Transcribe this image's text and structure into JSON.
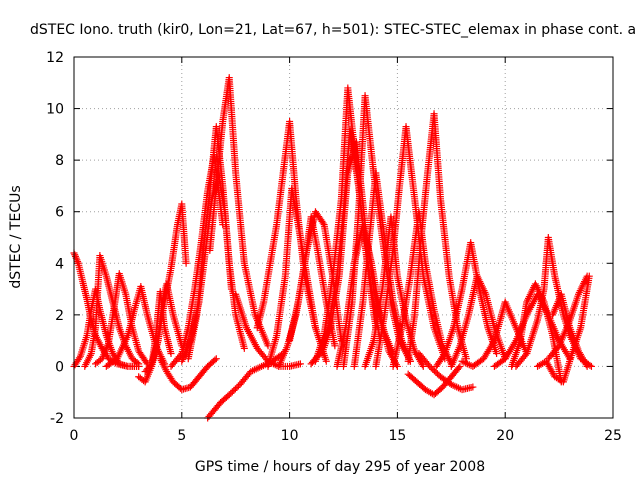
{
  "chart_data": {
    "type": "scatter",
    "title": "dSTEC Iono. truth (kir0, Lon=21, Lat=67, h=501): STEC-STEC_elemax in phase cont. a",
    "xlabel": "GPS time / hours of day 295 of year 2008",
    "ylabel": "dSTEC  / TECUs",
    "xlim": [
      0,
      25
    ],
    "ylim": [
      -2,
      12
    ],
    "xticks": [
      0,
      5,
      10,
      15,
      20,
      25
    ],
    "yticks": [
      -2,
      0,
      2,
      4,
      6,
      8,
      10,
      12
    ],
    "grid": true,
    "marker": "+",
    "color": "#ff0000",
    "series": [
      {
        "x": [
          0.0,
          0.2,
          0.4,
          0.6,
          0.8,
          1.0,
          1.3,
          1.6,
          2.0,
          2.5,
          3.0
        ],
        "y": [
          4.4,
          4.0,
          3.3,
          2.6,
          1.8,
          1.2,
          0.7,
          0.3,
          0.1,
          0.0,
          0.0
        ]
      },
      {
        "x": [
          0.0,
          0.3,
          0.6,
          0.8,
          1.0,
          1.2,
          1.5,
          1.8,
          2.1,
          2.5,
          3.0
        ],
        "y": [
          0.0,
          0.4,
          1.2,
          2.2,
          3.0,
          2.2,
          1.2,
          0.5,
          0.1,
          0.0,
          0.0
        ]
      },
      {
        "x": [
          0.5,
          0.8,
          1.0,
          1.2,
          1.5,
          1.8,
          2.1,
          2.4,
          2.7,
          3.0
        ],
        "y": [
          0.0,
          0.5,
          1.5,
          4.3,
          3.5,
          2.5,
          1.5,
          0.8,
          0.3,
          0.1
        ]
      },
      {
        "x": [
          1.0,
          1.3,
          1.6,
          1.9,
          2.1,
          2.4,
          2.7,
          3.0,
          3.4
        ],
        "y": [
          0.1,
          0.3,
          0.9,
          2.5,
          3.6,
          2.8,
          1.5,
          0.6,
          0.1
        ]
      },
      {
        "x": [
          1.5,
          2.0,
          2.5,
          2.8,
          3.1,
          3.4,
          3.8,
          4.2
        ],
        "y": [
          0.0,
          0.3,
          1.2,
          2.2,
          3.1,
          2.0,
          0.8,
          0.1
        ]
      },
      {
        "x": [
          3.0,
          3.3,
          3.6,
          3.8,
          4.0,
          4.2,
          4.5
        ],
        "y": [
          -0.4,
          -0.6,
          0.0,
          1.2,
          2.9,
          1.5,
          0.5
        ]
      },
      {
        "x": [
          3.3,
          3.6,
          3.9,
          4.1,
          4.3,
          4.6,
          5.0
        ],
        "y": [
          -0.2,
          0.1,
          1.0,
          2.5,
          3.2,
          2.0,
          0.8
        ]
      },
      {
        "x": [
          3.6,
          3.9,
          4.2,
          4.5,
          4.8,
          5.0,
          5.2
        ],
        "y": [
          0.0,
          1.0,
          2.5,
          3.8,
          5.5,
          6.3,
          4.0
        ]
      },
      {
        "x": [
          4.0,
          4.3,
          4.6,
          5.0,
          5.4,
          5.8,
          6.2,
          6.6
        ],
        "y": [
          0.3,
          -0.2,
          -0.6,
          -0.9,
          -0.8,
          -0.4,
          0.0,
          0.3
        ]
      },
      {
        "x": [
          4.5,
          5.0,
          5.3,
          5.6,
          5.9,
          6.2,
          6.5,
          6.9
        ],
        "y": [
          0.0,
          0.5,
          1.5,
          3.0,
          4.8,
          6.8,
          8.2,
          5.5
        ]
      },
      {
        "x": [
          5.0,
          5.4,
          5.8,
          6.1,
          6.4,
          6.7,
          7.0,
          7.3
        ],
        "y": [
          0.2,
          1.0,
          2.5,
          4.5,
          6.5,
          7.5,
          6.0,
          3.0
        ]
      },
      {
        "x": [
          5.3,
          5.7,
          6.0,
          6.3,
          6.6,
          6.9,
          7.2,
          7.5,
          7.9
        ],
        "y": [
          0.3,
          2.0,
          4.5,
          6.8,
          9.3,
          7.0,
          4.0,
          2.0,
          0.7
        ]
      },
      {
        "x": [
          6.3,
          6.6,
          6.9,
          7.2,
          7.5,
          7.9,
          8.4,
          9.0
        ],
        "y": [
          4.5,
          7.0,
          9.5,
          11.2,
          7.5,
          4.0,
          2.0,
          0.8
        ]
      },
      {
        "x": [
          6.2,
          6.5,
          6.8,
          7.2,
          7.7,
          8.2,
          8.7,
          9.2,
          9.7
        ],
        "y": [
          -2.0,
          -1.7,
          -1.4,
          -1.1,
          -0.7,
          -0.2,
          0.0,
          0.2,
          0.5
        ]
      },
      {
        "x": [
          7.5,
          8.0,
          8.5,
          9.0,
          9.5,
          10.0,
          10.5
        ],
        "y": [
          2.8,
          1.5,
          0.7,
          0.2,
          0.0,
          0.0,
          0.1
        ]
      },
      {
        "x": [
          8.5,
          8.8,
          9.1,
          9.4,
          9.7,
          10.0,
          10.3,
          10.7,
          11.2
        ],
        "y": [
          1.5,
          2.5,
          4.0,
          5.5,
          7.5,
          9.5,
          6.5,
          3.5,
          1.5
        ]
      },
      {
        "x": [
          9.0,
          9.4,
          9.8,
          10.1,
          10.4,
          10.8,
          11.2,
          11.7
        ],
        "y": [
          0.0,
          1.2,
          3.5,
          6.9,
          5.5,
          3.5,
          1.5,
          0.2
        ]
      },
      {
        "x": [
          9.5,
          9.9,
          10.3,
          10.7,
          11.0,
          11.3,
          11.7,
          12.1
        ],
        "y": [
          0.0,
          0.8,
          2.0,
          4.0,
          5.8,
          4.5,
          2.5,
          0.8
        ]
      },
      {
        "x": [
          10.0,
          10.4,
          10.8,
          11.2,
          11.6,
          12.0,
          12.4
        ],
        "y": [
          1.0,
          2.5,
          4.5,
          6.0,
          5.5,
          3.5,
          1.0
        ]
      },
      {
        "x": [
          11.0,
          11.4,
          11.8,
          12.2,
          12.5,
          12.8,
          13.2,
          13.6,
          14.0
        ],
        "y": [
          0.1,
          0.5,
          1.5,
          3.5,
          6.0,
          9.2,
          7.0,
          4.0,
          1.5
        ]
      },
      {
        "x": [
          11.2,
          11.6,
          12.0,
          12.4,
          12.7,
          13.0,
          13.4,
          13.8,
          14.2
        ],
        "y": [
          0.2,
          1.2,
          3.5,
          6.5,
          10.8,
          8.5,
          5.5,
          3.0,
          1.0
        ]
      },
      {
        "x": [
          11.5,
          11.9,
          12.3,
          12.7,
          13.1,
          13.5,
          13.9,
          14.3,
          14.8
        ],
        "y": [
          0.5,
          1.5,
          3.5,
          7.5,
          8.7,
          5.5,
          3.0,
          1.5,
          0.5
        ]
      },
      {
        "x": [
          12.2,
          12.6,
          13.0,
          13.4,
          13.8,
          14.2,
          14.6,
          15.0
        ],
        "y": [
          0.0,
          1.5,
          4.0,
          5.5,
          4.0,
          2.0,
          0.6,
          0.0
        ]
      },
      {
        "x": [
          12.5,
          12.9,
          13.2,
          13.5,
          13.9,
          14.3,
          14.7,
          15.1,
          15.6
        ],
        "y": [
          0.0,
          2.5,
          6.0,
          10.5,
          7.5,
          5.0,
          2.5,
          1.0,
          0.2
        ]
      },
      {
        "x": [
          13.0,
          13.4,
          13.7,
          14.0,
          14.4,
          14.8,
          15.2,
          15.6
        ],
        "y": [
          0.0,
          2.5,
          5.0,
          7.5,
          5.0,
          2.5,
          1.0,
          0.2
        ]
      },
      {
        "x": [
          13.5,
          13.9,
          14.3,
          14.7,
          15.0,
          15.4,
          15.8,
          16.2
        ],
        "y": [
          0.0,
          1.0,
          3.0,
          5.8,
          3.5,
          1.8,
          0.6,
          0.0
        ]
      },
      {
        "x": [
          14.0,
          14.4,
          14.8,
          15.1,
          15.4,
          15.8,
          16.2,
          16.7,
          17.2
        ],
        "y": [
          0.0,
          2.0,
          4.5,
          7.0,
          9.3,
          6.5,
          3.5,
          1.5,
          0.3
        ]
      },
      {
        "x": [
          14.8,
          15.2,
          15.6,
          16.0,
          16.3,
          16.7,
          17.1,
          17.5
        ],
        "y": [
          0.0,
          1.5,
          3.5,
          6.0,
          4.0,
          2.2,
          0.8,
          0.1
        ]
      },
      {
        "x": [
          15.5,
          15.8,
          16.1,
          16.4,
          16.7,
          17.0,
          17.4,
          17.8,
          18.2
        ],
        "y": [
          0.2,
          2.0,
          5.0,
          7.5,
          9.8,
          6.5,
          3.5,
          1.5,
          0.3
        ]
      },
      {
        "x": [
          15.5,
          15.9,
          16.3,
          16.7,
          17.1,
          17.5,
          17.9
        ],
        "y": [
          -0.3,
          -0.6,
          -0.9,
          -1.1,
          -0.8,
          -0.4,
          0.0
        ]
      },
      {
        "x": [
          16.0,
          16.5,
          17.0,
          17.5,
          18.0,
          18.5
        ],
        "y": [
          0.5,
          0.0,
          -0.4,
          -0.7,
          -0.9,
          -0.8
        ]
      },
      {
        "x": [
          16.8,
          17.2,
          17.6,
          18.0,
          18.4,
          18.8,
          19.2,
          19.6
        ],
        "y": [
          0.0,
          0.5,
          1.5,
          3.0,
          4.8,
          3.0,
          1.5,
          0.5
        ]
      },
      {
        "x": [
          17.5,
          17.9,
          18.3,
          18.7,
          19.1,
          19.5,
          20.0
        ],
        "y": [
          0.0,
          0.8,
          2.0,
          3.5,
          2.8,
          1.5,
          0.3
        ]
      },
      {
        "x": [
          18.0,
          18.5,
          19.0,
          19.5,
          20.0,
          20.5,
          21.0
        ],
        "y": [
          0.2,
          0.0,
          0.3,
          1.0,
          2.5,
          1.5,
          0.5
        ]
      },
      {
        "x": [
          19.5,
          20.0,
          20.5,
          21.0,
          21.5,
          22.0,
          22.5,
          23.0
        ],
        "y": [
          0.0,
          0.3,
          1.0,
          2.0,
          2.8,
          2.0,
          1.0,
          0.3
        ]
      },
      {
        "x": [
          20.5,
          21.0,
          21.5,
          21.8,
          22.0,
          22.3,
          22.7,
          23.0,
          23.5,
          24.0
        ],
        "y": [
          0.0,
          0.5,
          1.8,
          3.0,
          5.0,
          3.5,
          2.0,
          1.2,
          0.3,
          0.0
        ]
      },
      {
        "x": [
          20.3,
          20.7,
          21.0,
          21.4,
          21.8,
          22.2,
          22.6
        ],
        "y": [
          0.0,
          1.0,
          2.5,
          3.2,
          2.5,
          1.2,
          -0.6
        ]
      },
      {
        "x": [
          21.5,
          21.9,
          22.3,
          22.7,
          23.1,
          23.5,
          23.9
        ],
        "y": [
          0.0,
          0.2,
          -0.4,
          -0.6,
          0.5,
          1.5,
          3.5
        ]
      },
      {
        "x": [
          22.0,
          22.5,
          23.0,
          23.4,
          23.8
        ],
        "y": [
          0.3,
          0.8,
          1.8,
          2.8,
          3.5
        ]
      },
      {
        "x": [
          22.2,
          22.6,
          23.0,
          23.4,
          23.8
        ],
        "y": [
          2.0,
          2.8,
          1.5,
          0.6,
          0.0
        ]
      }
    ]
  }
}
